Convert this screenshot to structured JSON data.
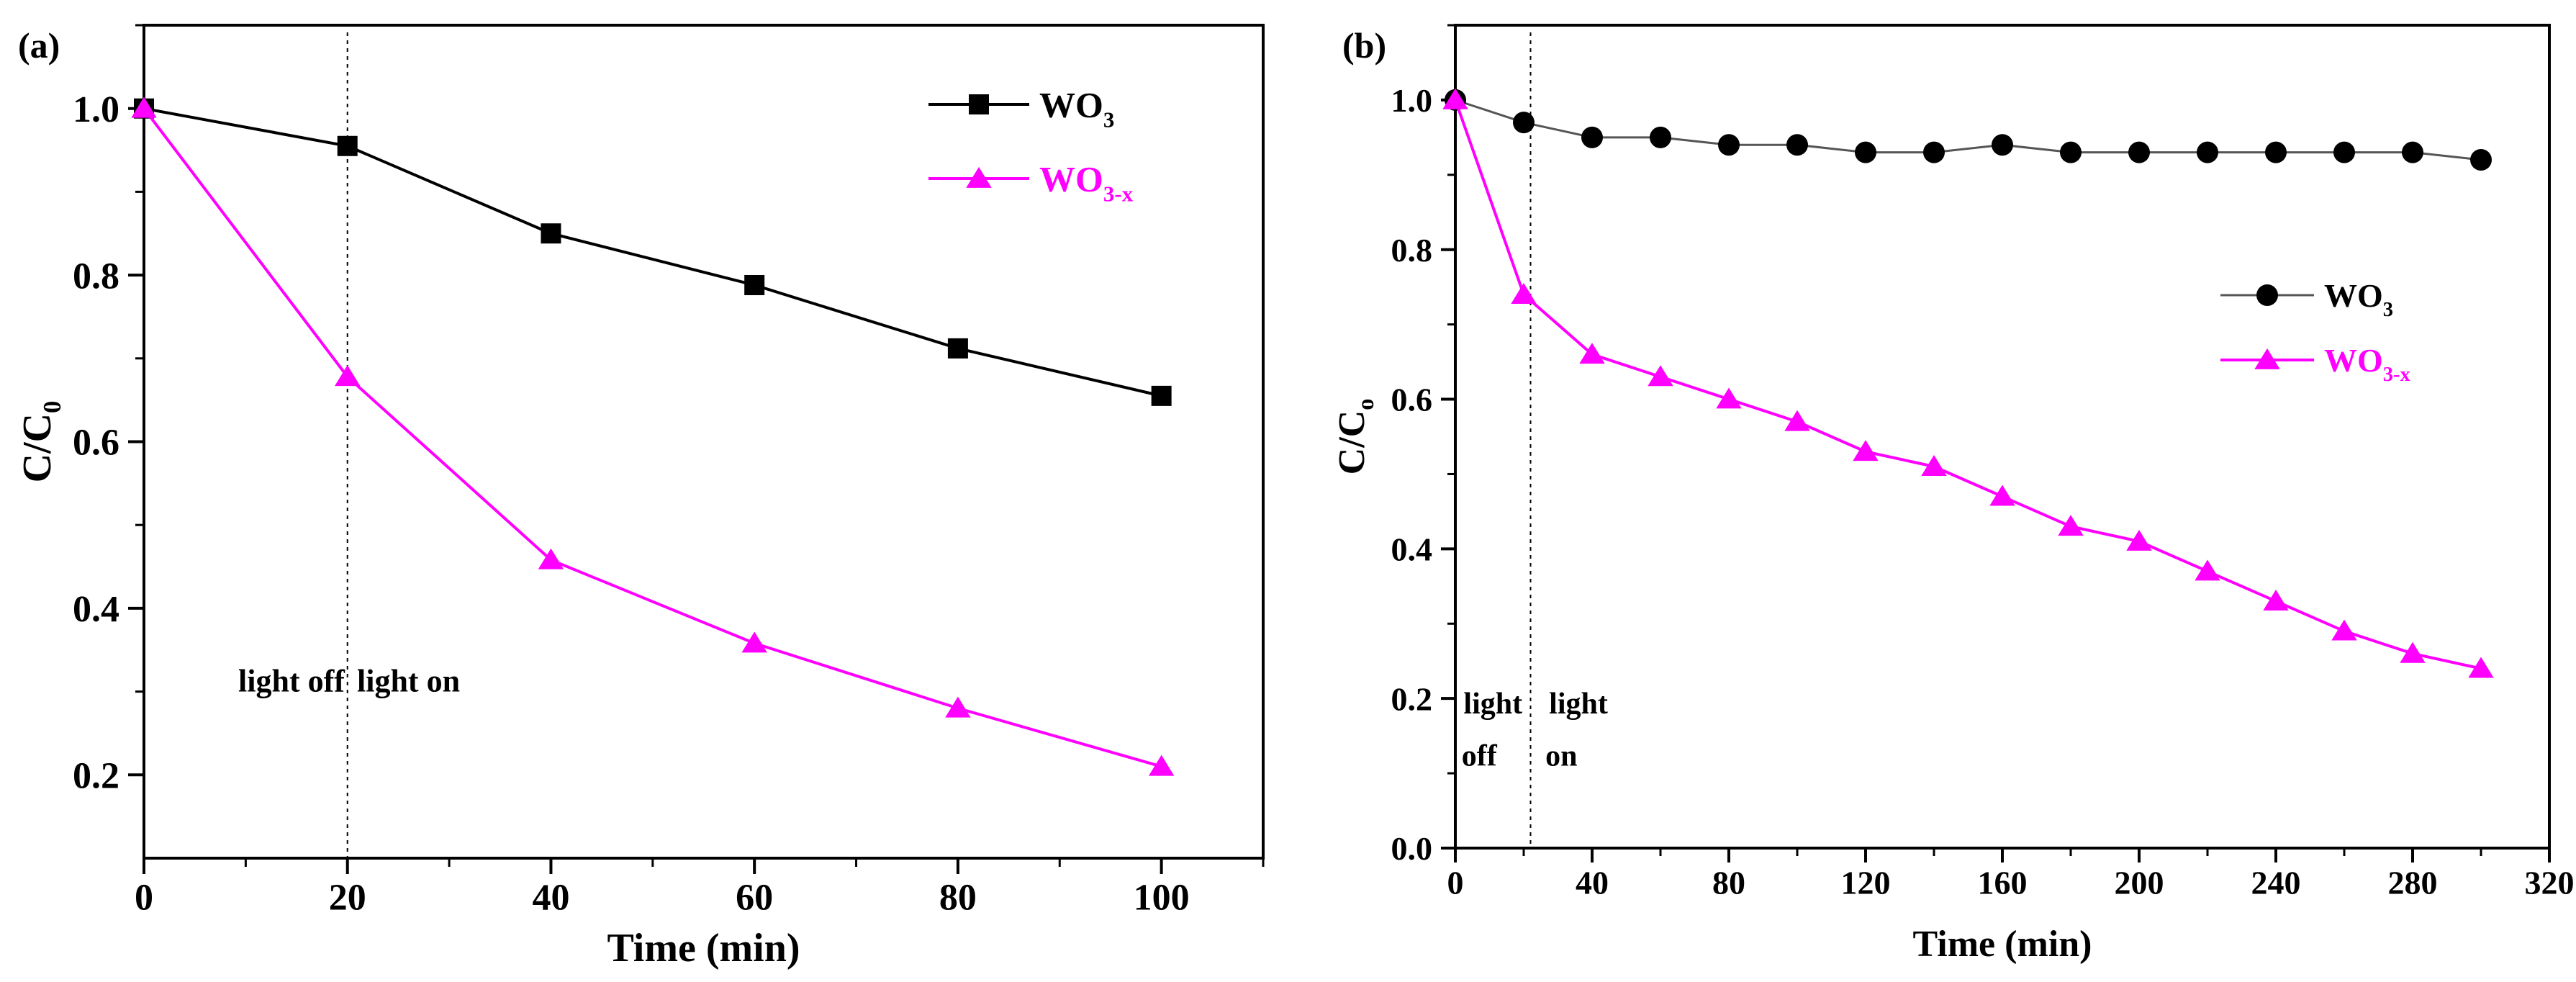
{
  "colors": {
    "wo3_a": "#000000",
    "wo3_b": "#555555",
    "wo3x": "#ff00ff",
    "axis": "#000000"
  },
  "chart_data": [
    {
      "panel": "(a)",
      "type": "line",
      "title": "",
      "xlabel": "Time (min)",
      "ylabel": {
        "main": "C/C",
        "sub": "0"
      },
      "xlim": [
        0,
        110
      ],
      "ylim": [
        0.1,
        1.1
      ],
      "xticks": [
        0,
        20,
        40,
        60,
        80,
        100
      ],
      "xtick_labels": [
        "0",
        "20",
        "40",
        "60",
        "80",
        "100"
      ],
      "yticks": [
        0.2,
        0.4,
        0.6,
        0.8,
        1.0
      ],
      "ytick_labels": [
        "0.2",
        "0.4",
        "0.6",
        "0.8",
        "1.0"
      ],
      "legend_position": "top-right",
      "divider_x": 20,
      "annotations": [
        {
          "text": "light off",
          "x": 14.5,
          "y": 0.3,
          "anchor": "middle"
        },
        {
          "text": "light on",
          "x": 26,
          "y": 0.3,
          "anchor": "middle"
        }
      ],
      "series": [
        {
          "name": "WO",
          "sub": "3",
          "marker": "square",
          "color": "#000000",
          "x": [
            0,
            20,
            40,
            60,
            80,
            100
          ],
          "y": [
            1.0,
            0.955,
            0.85,
            0.788,
            0.712,
            0.655
          ]
        },
        {
          "name": "WO",
          "sub": "3-x",
          "marker": "triangle",
          "color": "#ff00ff",
          "x": [
            0,
            20,
            40,
            60,
            80,
            100
          ],
          "y": [
            1.0,
            0.678,
            0.458,
            0.358,
            0.28,
            0.21
          ]
        }
      ]
    },
    {
      "panel": "(b)",
      "type": "line",
      "title": "",
      "xlabel": "Time (min)",
      "ylabel": {
        "main": "C/C",
        "sub": "o"
      },
      "xlim": [
        0,
        320
      ],
      "ylim": [
        0,
        1.1
      ],
      "xticks": [
        0,
        40,
        80,
        120,
        160,
        200,
        240,
        280,
        320
      ],
      "xtick_labels": [
        "0",
        "40",
        "80",
        "120",
        "160",
        "200",
        "240",
        "280",
        "320"
      ],
      "yticks": [
        0,
        0.2,
        0.4,
        0.6,
        0.8,
        1.0
      ],
      "ytick_labels": [
        "0.0",
        "0.2",
        "0.4",
        "0.6",
        "0.8",
        "1.0"
      ],
      "legend_position": "right",
      "divider_x": 22,
      "annotations": [
        {
          "text": "light",
          "x": 11,
          "y": 0.18,
          "anchor": "middle"
        },
        {
          "text": "off",
          "x": 7,
          "y": 0.11,
          "anchor": "middle"
        },
        {
          "text": "light",
          "x": 36,
          "y": 0.18,
          "anchor": "middle"
        },
        {
          "text": "on",
          "x": 31,
          "y": 0.11,
          "anchor": "middle"
        }
      ],
      "series": [
        {
          "name": "WO",
          "sub": "3",
          "marker": "circle",
          "color": "#555555",
          "x": [
            0,
            20,
            40,
            60,
            80,
            100,
            120,
            140,
            160,
            180,
            200,
            220,
            240,
            260,
            280,
            300
          ],
          "y": [
            1.0,
            0.97,
            0.95,
            0.95,
            0.94,
            0.94,
            0.93,
            0.93,
            0.94,
            0.93,
            0.93,
            0.93,
            0.93,
            0.93,
            0.93,
            0.92
          ]
        },
        {
          "name": "WO",
          "sub": "3-x",
          "marker": "triangle",
          "color": "#ff00ff",
          "x": [
            0,
            20,
            40,
            60,
            80,
            100,
            120,
            140,
            160,
            180,
            200,
            220,
            240,
            260,
            280,
            300
          ],
          "y": [
            1.0,
            0.74,
            0.66,
            0.63,
            0.6,
            0.57,
            0.53,
            0.51,
            0.47,
            0.43,
            0.41,
            0.37,
            0.33,
            0.29,
            0.26,
            0.24
          ]
        }
      ]
    }
  ]
}
